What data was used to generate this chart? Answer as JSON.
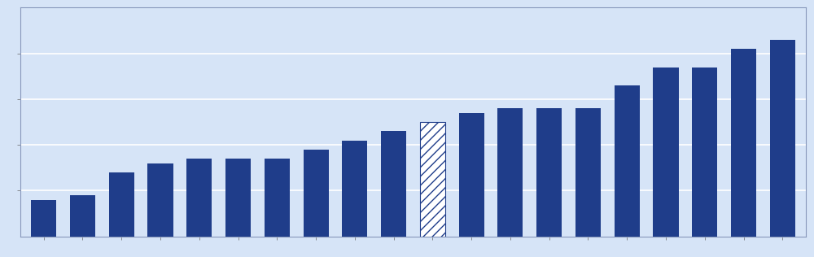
{
  "values": [
    8,
    9,
    14,
    16,
    17,
    17,
    17,
    19,
    21,
    23,
    25,
    27,
    28,
    28,
    28,
    33,
    37,
    37,
    41,
    43
  ],
  "hatched_index": 10,
  "bar_color": "#1F3D8A",
  "background_color": "#D6E4F7",
  "plot_bg_color": "#D6E4F7",
  "grid_color": "#FFFFFF",
  "border_color": "#8898BB",
  "ylim": [
    0,
    50
  ],
  "yticks": [
    10,
    20,
    30,
    40
  ],
  "figsize": [
    10.0,
    3.16
  ],
  "dpi": 100
}
